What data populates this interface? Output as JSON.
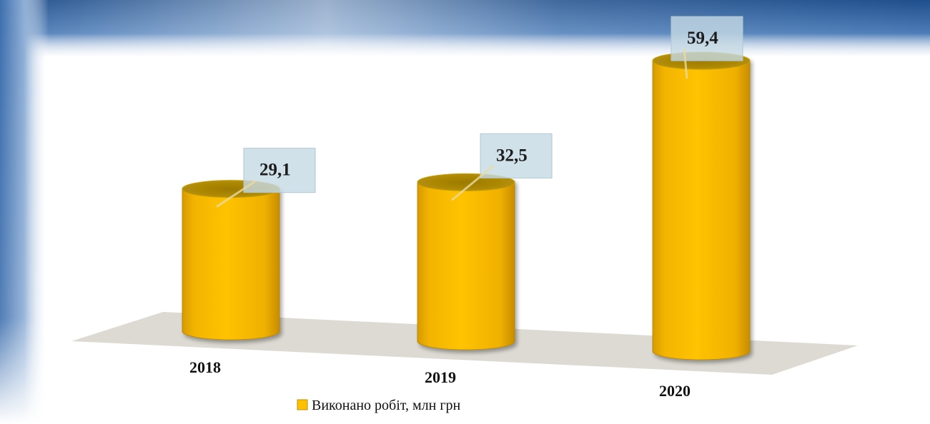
{
  "chart_data": {
    "type": "bar",
    "title": "",
    "xlabel": "",
    "ylabel": "",
    "categories": [
      "2018",
      "2019",
      "2020"
    ],
    "series": [
      {
        "name": "Виконано робіт, млн грн",
        "values": [
          29.1,
          32.5,
          59.4
        ]
      }
    ],
    "data_labels": [
      "29,1",
      "32,5",
      "59,4"
    ],
    "grid": false,
    "legend": "bottom",
    "colors": {
      "bar": "#FFC000",
      "bar_top": "#B08A00",
      "floor": "#DCDAD2",
      "header": "#1E4E8C"
    }
  }
}
